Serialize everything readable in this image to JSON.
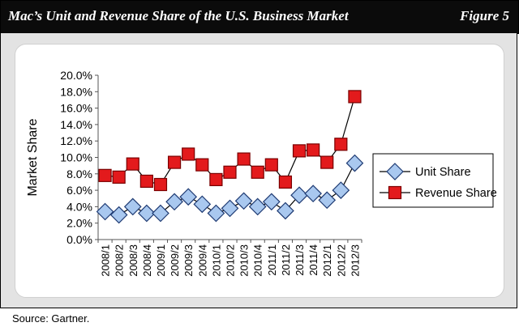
{
  "header": {
    "title": "Mac’s Unit and Revenue Share of the U.S. Business Market",
    "figure_label": "Figure 5"
  },
  "source_text": "Source: Gartner.",
  "colors": {
    "header_bg": "#0b0b0b",
    "panel_bg": "#e3e3e3",
    "unit_fill": "#a9c8ef",
    "unit_stroke": "#1f3b73",
    "revenue_fill": "#e31a1c",
    "revenue_stroke": "#7a0000",
    "line": "#000000"
  },
  "chart_data": {
    "type": "line",
    "title": "",
    "xlabel": "",
    "ylabel": "Market Share",
    "ylim": [
      0,
      20
    ],
    "yticks": [
      "0.0%",
      "2.0%",
      "4.0%",
      "6.0%",
      "8.0%",
      "10.0%",
      "12.0%",
      "14.0%",
      "16.0%",
      "18.0%",
      "20.0%"
    ],
    "grid": false,
    "legend_position": "right",
    "categories": [
      "2008/1",
      "2008/2",
      "2008/3",
      "2008/4",
      "2009/1",
      "2009/2",
      "2009/3",
      "2009/4",
      "2010/1",
      "2010/2",
      "2010/3",
      "2010/4",
      "2011/1",
      "2011/2",
      "2011/3",
      "2011/4",
      "2012/1",
      "2012/2",
      "2012/3"
    ],
    "series": [
      {
        "name": "Unit Share",
        "marker": "diamond",
        "values": [
          3.4,
          3.0,
          4.0,
          3.2,
          3.2,
          4.6,
          5.2,
          4.3,
          3.2,
          3.8,
          4.7,
          4.0,
          4.6,
          3.5,
          5.4,
          5.6,
          4.8,
          6.0,
          9.3
        ]
      },
      {
        "name": "Revenue Share",
        "marker": "square",
        "values": [
          7.8,
          7.6,
          9.2,
          7.1,
          6.7,
          9.4,
          10.4,
          9.1,
          7.3,
          8.2,
          9.8,
          8.2,
          9.1,
          7.0,
          10.8,
          10.9,
          9.4,
          11.6,
          17.4
        ]
      }
    ]
  }
}
